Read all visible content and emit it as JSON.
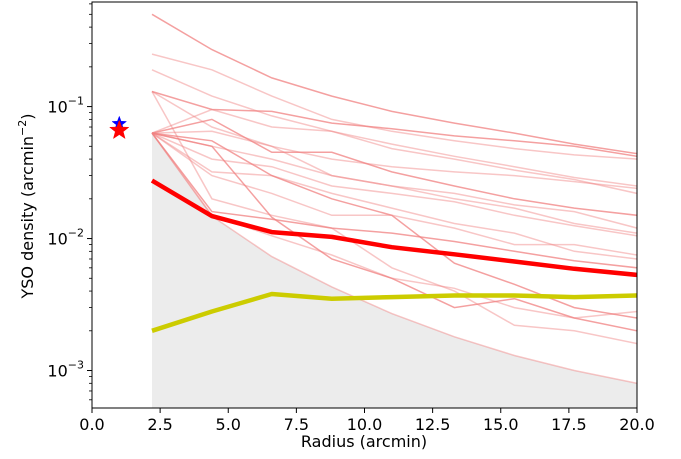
{
  "chart_data": {
    "type": "line",
    "xlabel": "Radius (arcmin)",
    "ylabel": "YSO density (arcmin⁻²)",
    "ylabel_parts": {
      "main": "YSO density (arcmin",
      "sup": "−2",
      "close": ")"
    },
    "xlim": [
      0,
      20
    ],
    "ylim": [
      0.00052,
      0.62
    ],
    "yscale": "log",
    "grid": false,
    "x_ticks": [
      "0.0",
      "2.5",
      "5.0",
      "7.5",
      "10.0",
      "12.5",
      "15.0",
      "17.5",
      "20.0"
    ],
    "x_tick_values": [
      0,
      2.5,
      5,
      7.5,
      10,
      12.5,
      15,
      17.5,
      20
    ],
    "y_ticks": [
      {
        "value": 0.001,
        "base": "10",
        "exp": "−3"
      },
      {
        "value": 0.01,
        "base": "10",
        "exp": "−2"
      },
      {
        "value": 0.1,
        "base": "10",
        "exp": "−1"
      }
    ],
    "shaded_region": {
      "color": "#ececec",
      "points": [
        [
          2.2,
          0.063
        ],
        [
          4.4,
          0.0148
        ],
        [
          6.6,
          0.0073
        ],
        [
          8.8,
          0.0043
        ],
        [
          11.0,
          0.0027
        ],
        [
          13.3,
          0.0018
        ],
        [
          15.5,
          0.0013
        ],
        [
          17.7,
          0.001
        ],
        [
          20.0,
          0.0008
        ]
      ]
    },
    "background_series": [
      {
        "x": [
          2.2,
          4.4,
          6.6,
          8.8,
          11.0,
          13.3,
          15.5,
          17.7,
          20.0
        ],
        "values": [
          0.5,
          0.27,
          0.165,
          0.12,
          0.092,
          0.075,
          0.063,
          0.052,
          0.044
        ]
      },
      {
        "x": [
          2.2,
          4.4,
          6.6,
          8.8,
          11.0,
          13.3,
          15.5,
          17.7,
          20.0
        ],
        "values": [
          0.25,
          0.19,
          0.12,
          0.08,
          0.065,
          0.055,
          0.048,
          0.043,
          0.04
        ]
      },
      {
        "x": [
          2.2,
          4.4,
          6.6,
          8.8,
          11.0,
          13.3,
          15.5,
          17.7,
          20.0
        ],
        "values": [
          0.19,
          0.12,
          0.085,
          0.065,
          0.052,
          0.042,
          0.035,
          0.029,
          0.025
        ]
      },
      {
        "x": [
          2.2,
          4.4,
          6.6,
          8.8,
          11.0,
          13.3,
          15.5,
          17.7,
          20.0
        ],
        "values": [
          0.13,
          0.095,
          0.092,
          0.075,
          0.068,
          0.06,
          0.055,
          0.05,
          0.042
        ]
      },
      {
        "x": [
          2.2,
          4.4,
          6.6,
          8.8,
          11.0,
          13.3,
          15.5,
          17.7,
          20.0
        ],
        "values": [
          0.13,
          0.07,
          0.05,
          0.04,
          0.035,
          0.032,
          0.03,
          0.027,
          0.024
        ]
      },
      {
        "x": [
          2.2,
          4.4,
          6.6,
          8.8,
          11.0,
          13.3,
          15.5,
          17.7,
          20.0
        ],
        "values": [
          0.063,
          0.095,
          0.07,
          0.065,
          0.048,
          0.04,
          0.033,
          0.028,
          0.022
        ]
      },
      {
        "x": [
          2.2,
          4.4,
          6.6,
          8.8,
          11.0,
          13.3,
          15.5,
          17.7,
          20.0
        ],
        "values": [
          0.063,
          0.08,
          0.045,
          0.045,
          0.032,
          0.025,
          0.02,
          0.017,
          0.015
        ]
      },
      {
        "x": [
          2.2,
          4.4,
          6.6,
          8.8,
          11.0,
          13.3,
          15.5,
          17.7,
          20.0
        ],
        "values": [
          0.063,
          0.05,
          0.04,
          0.03,
          0.025,
          0.02,
          0.017,
          0.013,
          0.011
        ]
      },
      {
        "x": [
          2.2,
          4.4,
          6.6,
          8.8,
          11.0,
          13.3,
          15.5,
          17.7,
          20.0
        ],
        "values": [
          0.063,
          0.032,
          0.03,
          0.022,
          0.017,
          0.013,
          0.011,
          0.008,
          0.007
        ]
      },
      {
        "x": [
          2.2,
          4.4,
          6.6,
          8.8,
          11.0,
          13.3,
          15.5,
          17.7,
          20.0
        ],
        "values": [
          0.063,
          0.016,
          0.014,
          0.012,
          0.011,
          0.0095,
          0.008,
          0.0068,
          0.006
        ]
      },
      {
        "x": [
          2.2,
          4.4,
          6.6,
          8.8,
          11.0,
          13.3,
          15.5,
          17.7,
          20.0
        ],
        "values": [
          0.063,
          0.0148,
          0.0073,
          0.0043,
          0.0027,
          0.0018,
          0.0013,
          0.001,
          0.0008
        ]
      },
      {
        "x": [
          2.2,
          4.4,
          6.6,
          8.8,
          11.0,
          13.3,
          15.5,
          17.7,
          20.0
        ],
        "values": [
          0.13,
          0.02,
          0.015,
          0.012,
          0.006,
          0.004,
          0.0022,
          0.002,
          0.0016
        ]
      },
      {
        "x": [
          2.2,
          4.4,
          6.6,
          8.8,
          11.0,
          13.3,
          15.5,
          17.7,
          20.0
        ],
        "values": [
          0.063,
          0.05,
          0.0145,
          0.007,
          0.005,
          0.003,
          0.0035,
          0.0025,
          0.002
        ]
      },
      {
        "x": [
          2.2,
          4.4,
          6.6,
          8.8,
          11.0,
          13.3,
          15.5,
          17.7,
          20.0
        ],
        "values": [
          0.063,
          0.03,
          0.022,
          0.015,
          0.015,
          0.012,
          0.009,
          0.009,
          0.0075
        ]
      },
      {
        "x": [
          2.2,
          4.4,
          6.6,
          8.8,
          11.0,
          13.3,
          15.5,
          17.7,
          20.0
        ],
        "values": [
          0.063,
          0.04,
          0.035,
          0.025,
          0.022,
          0.019,
          0.015,
          0.0125,
          0.0105
        ]
      },
      {
        "x": [
          2.2,
          4.4,
          6.6,
          8.8,
          11.0,
          13.3,
          15.5,
          17.7,
          20.0
        ],
        "values": [
          0.063,
          0.055,
          0.03,
          0.02,
          0.015,
          0.0065,
          0.0045,
          0.003,
          0.0025
        ]
      },
      {
        "x": [
          2.2,
          4.4,
          6.6,
          8.8,
          11.0,
          13.3,
          15.5,
          17.7,
          20.0
        ],
        "values": [
          0.063,
          0.015,
          0.0105,
          0.0075,
          0.005,
          0.0042,
          0.003,
          0.0025,
          0.0028
        ]
      },
      {
        "x": [
          2.2,
          4.4,
          6.6,
          8.8,
          11.0,
          13.3,
          15.5,
          17.7,
          20.0
        ],
        "values": [
          0.063,
          0.065,
          0.05,
          0.03,
          0.025,
          0.022,
          0.018,
          0.016,
          0.012
        ]
      }
    ],
    "series": [
      {
        "color": "#ff0000",
        "x": [
          2.2,
          4.4,
          6.6,
          8.8,
          11.0,
          13.3,
          15.5,
          17.7,
          20.0
        ],
        "values": [
          0.0275,
          0.0148,
          0.0112,
          0.0103,
          0.0086,
          0.0076,
          0.0067,
          0.0059,
          0.0053
        ]
      },
      {
        "color": "#cccc00",
        "x": [
          2.2,
          4.4,
          6.6,
          8.8,
          11.0,
          13.3,
          15.5,
          17.7,
          20.0
        ],
        "values": [
          0.002,
          0.0028,
          0.0038,
          0.0035,
          0.0036,
          0.0037,
          0.0037,
          0.0036,
          0.0037
        ]
      }
    ],
    "markers": [
      {
        "shape": "star",
        "color": "#0000ff",
        "x": 1.0,
        "y": 0.074
      },
      {
        "shape": "star",
        "color": "#ff0000",
        "x": 1.0,
        "y": 0.066
      }
    ]
  }
}
